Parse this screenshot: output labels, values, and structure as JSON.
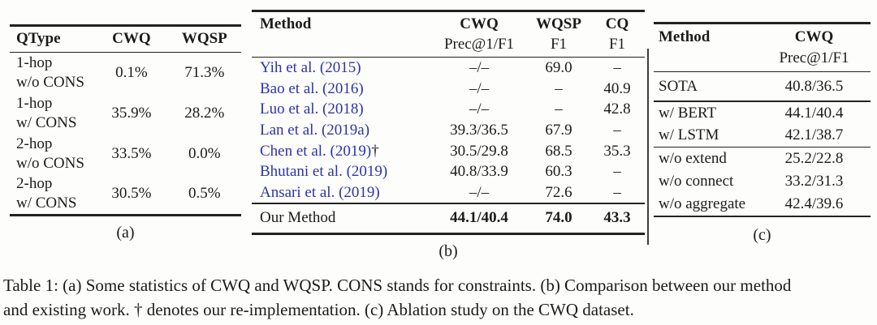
{
  "colors": {
    "link_blue": "#2b35a6",
    "text": "#1b1b1b",
    "rule": "#222222",
    "background": "#fdfdfc"
  },
  "table_a": {
    "caption": "(a)",
    "headers": {
      "qtype": "QType",
      "cwq": "CWQ",
      "wqsp": "WQSP"
    },
    "rows": [
      {
        "label1": "1-hop",
        "label2": "w/o CONS",
        "cwq": "0.1%",
        "wqsp": "71.3%"
      },
      {
        "label1": "1-hop",
        "label2": "w/ CONS",
        "cwq": "35.9%",
        "wqsp": "28.2%"
      },
      {
        "label1": "2-hop",
        "label2": "w/o CONS",
        "cwq": "33.5%",
        "wqsp": "0.0%"
      },
      {
        "label1": "2-hop",
        "label2": "w/ CONS",
        "cwq": "30.5%",
        "wqsp": "0.5%"
      }
    ]
  },
  "table_b": {
    "caption": "(b)",
    "header": {
      "method": "Method",
      "cwq": "CWQ",
      "cwq_sub": "Prec@1/F1",
      "wqsp": "WQSP",
      "wqsp_sub": "F1",
      "cq": "CQ",
      "cq_sub": "F1"
    },
    "rows": [
      {
        "method": "Yih et al. (2015)",
        "dagger": "",
        "cwq": "–/–",
        "wqsp": "69.0",
        "cq": "–"
      },
      {
        "method": "Bao et al. (2016)",
        "dagger": "",
        "cwq": "–/–",
        "wqsp": "–",
        "cq": "40.9"
      },
      {
        "method": "Luo et al. (2018)",
        "dagger": "",
        "cwq": "–/–",
        "wqsp": "–",
        "cq": "42.8"
      },
      {
        "method": "Lan et al. (2019a)",
        "dagger": "",
        "cwq": "39.3/36.5",
        "wqsp": "67.9",
        "cq": "–"
      },
      {
        "method": "Chen et al. (2019)",
        "dagger": "†",
        "cwq": "30.5/29.8",
        "wqsp": "68.5",
        "cq": "35.3"
      },
      {
        "method": "Bhutani et al. (2019)",
        "dagger": "",
        "cwq": "40.8/33.9",
        "wqsp": "60.3",
        "cq": "–"
      },
      {
        "method": "Ansari et al. (2019)",
        "dagger": "",
        "cwq": "–/–",
        "wqsp": "72.6",
        "cq": "–"
      }
    ],
    "summary_row": {
      "method": "Our Method",
      "cwq": "44.1/40.4",
      "wqsp": "74.0",
      "cq": "43.3"
    }
  },
  "table_c": {
    "caption": "(c)",
    "header": {
      "method": "Method",
      "cwq": "CWQ",
      "cwq_sub": "Prec@1/F1"
    },
    "sections": [
      {
        "rows": [
          {
            "method": "SOTA",
            "val": "40.8/36.5"
          }
        ]
      },
      {
        "rows": [
          {
            "method": "w/ BERT",
            "val": "44.1/40.4"
          },
          {
            "method": "w/ LSTM",
            "val": "42.1/38.7"
          }
        ]
      },
      {
        "rows": [
          {
            "method": "w/o extend",
            "val": "25.2/22.8"
          },
          {
            "method": "w/o connect",
            "val": "33.2/31.3"
          },
          {
            "method": "w/o aggregate",
            "val": "42.4/39.6"
          }
        ]
      }
    ]
  },
  "caption": {
    "line1": "Table 1: (a) Some statistics of CWQ and WQSP. CONS stands for constraints. (b) Comparison between our method",
    "line2": "and existing work. † denotes our re-implementation. (c) Ablation study on the CWQ dataset."
  }
}
